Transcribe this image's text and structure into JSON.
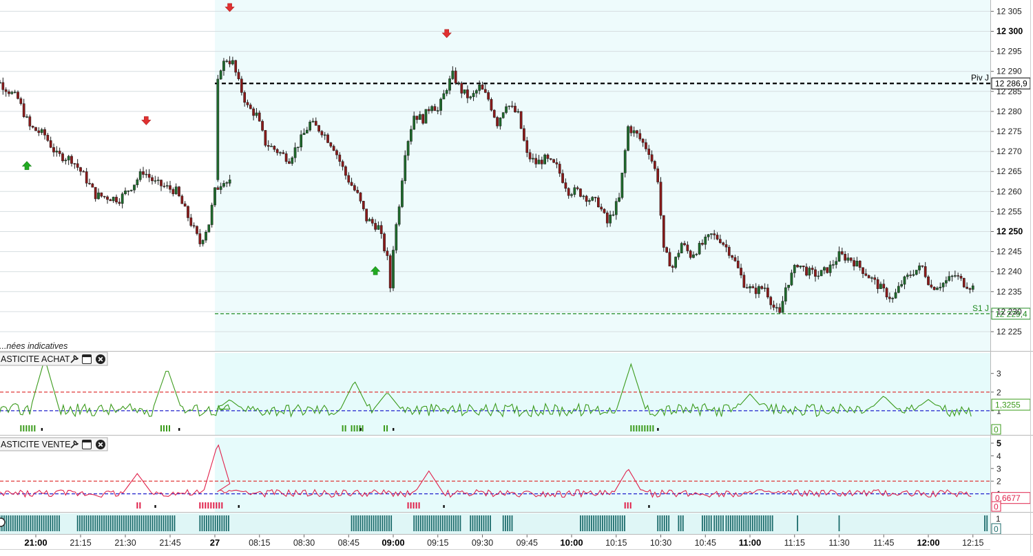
{
  "chart_data": [
    {
      "id": "price",
      "type": "candlestick",
      "note_text": "...nées indicatives",
      "y_ticks": [
        "12 305",
        "12 300",
        "12 295",
        "12 290",
        "12 285",
        "12 280",
        "12 275",
        "12 270",
        "12 265",
        "12 260",
        "12 255",
        "12 250",
        "12 245",
        "12 240",
        "12 235",
        "12 230",
        "12 225"
      ],
      "y_bold": [
        "12 300",
        "12 250"
      ],
      "ylim": [
        12222,
        12309
      ],
      "x_time_labels": [
        "21:00",
        "21:15",
        "21:30",
        "21:45",
        "27",
        "08:15",
        "08:30",
        "08:45",
        "09:00",
        "09:15",
        "09:30",
        "09:45",
        "10:00",
        "10:15",
        "10:30",
        "10:45",
        "11:00",
        "11:15",
        "11:30",
        "11:45",
        "12:00",
        "12:15"
      ],
      "x_bold": [
        "21:00",
        "27",
        "09:00",
        "10:00",
        "11:00",
        "12:00"
      ],
      "session_start_label": "27",
      "levels": [
        {
          "name": "Piv J",
          "value": 12286.9,
          "label": "12 286,9",
          "color": "#000000",
          "style": "dashed-bold"
        },
        {
          "name": "S1 J",
          "value": 12229.4,
          "label": "12 229,4",
          "color": "#1f8a1f",
          "style": "dashed"
        }
      ],
      "signals": [
        {
          "kind": "buy",
          "time": "20:57",
          "color": "#22aa22"
        },
        {
          "kind": "sell",
          "time": "21:37",
          "color": "#e03030"
        },
        {
          "kind": "sell",
          "time": "08:05",
          "color": "#e03030"
        },
        {
          "kind": "buy",
          "time": "08:54",
          "color": "#22aa22"
        },
        {
          "kind": "sell",
          "time": "09:18",
          "color": "#e03030"
        }
      ],
      "path": [
        [
          "20:42",
          12291
        ],
        [
          "20:48",
          12287
        ],
        [
          "20:54",
          12283
        ],
        [
          "20:58",
          12276
        ],
        [
          "21:03",
          12274
        ],
        [
          "21:07",
          12269
        ],
        [
          "21:12",
          12268
        ],
        [
          "21:16",
          12264
        ],
        [
          "21:20",
          12259
        ],
        [
          "21:28",
          12258
        ],
        [
          "21:33",
          12262
        ],
        [
          "21:36",
          12265
        ],
        [
          "21:40",
          12262
        ],
        [
          "21:47",
          12260
        ],
        [
          "21:52",
          12252
        ],
        [
          "21:55",
          12247
        ],
        [
          "21:58",
          12252
        ],
        [
          "22:00",
          12260
        ],
        [
          "22:03",
          12263
        ],
        [
          "22:05",
          12262
        ],
        [
          "08:00",
          12283
        ],
        [
          "08:02",
          12291
        ],
        [
          "08:04",
          12293
        ],
        [
          "08:06",
          12292
        ],
        [
          "08:08",
          12287
        ],
        [
          "08:11",
          12281
        ],
        [
          "08:14",
          12279
        ],
        [
          "08:17",
          12272
        ],
        [
          "08:21",
          12270
        ],
        [
          "08:25",
          12268
        ],
        [
          "08:29",
          12273
        ],
        [
          "08:32",
          12277
        ],
        [
          "08:36",
          12275
        ],
        [
          "08:40",
          12271
        ],
        [
          "08:44",
          12264
        ],
        [
          "08:48",
          12259
        ],
        [
          "08:51",
          12253
        ],
        [
          "08:55",
          12251
        ],
        [
          "08:58",
          12243
        ],
        [
          "08:59",
          12236
        ],
        [
          "09:00",
          12246
        ],
        [
          "09:02",
          12257
        ],
        [
          "09:04",
          12270
        ],
        [
          "09:07",
          12279
        ],
        [
          "09:10",
          12278
        ],
        [
          "09:13",
          12282
        ],
        [
          "09:15",
          12280
        ],
        [
          "09:18",
          12286
        ],
        [
          "09:20",
          12289
        ],
        [
          "09:23",
          12285
        ],
        [
          "09:26",
          12283
        ],
        [
          "09:29",
          12286
        ],
        [
          "09:32",
          12283
        ],
        [
          "09:35",
          12277
        ],
        [
          "09:38",
          12282
        ],
        [
          "09:42",
          12279
        ],
        [
          "09:45",
          12269
        ],
        [
          "09:48",
          12267
        ],
        [
          "09:51",
          12268
        ],
        [
          "09:55",
          12266
        ],
        [
          "09:59",
          12260
        ],
        [
          "10:02",
          12260
        ],
        [
          "10:06",
          12258
        ],
        [
          "10:09",
          12257
        ],
        [
          "10:12",
          12252
        ],
        [
          "10:16",
          12258
        ],
        [
          "10:19",
          12276
        ],
        [
          "10:22",
          12274
        ],
        [
          "10:26",
          12270
        ],
        [
          "10:29",
          12263
        ],
        [
          "10:31",
          12245
        ],
        [
          "10:34",
          12241
        ],
        [
          "10:37",
          12247
        ],
        [
          "10:40",
          12244
        ],
        [
          "10:43",
          12246
        ],
        [
          "10:47",
          12249
        ],
        [
          "10:50",
          12248
        ],
        [
          "10:54",
          12244
        ],
        [
          "10:58",
          12237
        ],
        [
          "11:01",
          12235
        ],
        [
          "11:05",
          12236
        ],
        [
          "11:08",
          12231
        ],
        [
          "11:10",
          12229
        ],
        [
          "11:12",
          12236
        ],
        [
          "11:16",
          12242
        ],
        [
          "11:19",
          12240
        ],
        [
          "11:23",
          12239
        ],
        [
          "11:27",
          12241
        ],
        [
          "11:30",
          12244
        ],
        [
          "11:34",
          12243
        ],
        [
          "11:37",
          12241
        ],
        [
          "11:41",
          12238
        ],
        [
          "11:45",
          12235
        ],
        [
          "11:48",
          12233
        ],
        [
          "11:51",
          12237
        ],
        [
          "11:55",
          12240
        ],
        [
          "11:58",
          12241
        ],
        [
          "12:01",
          12236
        ],
        [
          "12:05",
          12237
        ],
        [
          "12:09",
          12239
        ],
        [
          "12:12",
          12237
        ],
        [
          "12:15",
          12236
        ],
        [
          "12:18",
          12234
        ]
      ]
    },
    {
      "id": "elasticite_achat",
      "type": "line",
      "title": "ASTICITE ACHAT",
      "value_label": "1,3255",
      "zero_label": "0",
      "y_ticks": [
        "3",
        "2",
        "1"
      ],
      "ylim": [
        0,
        3.8
      ],
      "lines": [
        {
          "value": 2,
          "color": "#dd2222"
        },
        {
          "value": 1,
          "color": "#1f1fcc"
        }
      ],
      "line_color": "#3a9a1a",
      "spikes": [
        [
          "21:03",
          3.8
        ],
        [
          "21:44",
          3.3
        ],
        [
          "08:05",
          1.6
        ],
        [
          "08:47",
          2.6
        ],
        [
          "08:58",
          2.0
        ],
        [
          "10:20",
          3.5
        ],
        [
          "11:00",
          1.9
        ],
        [
          "11:45",
          1.8
        ],
        [
          "12:00",
          1.6
        ]
      ],
      "bars": [
        [
          "20:55",
          "21:00"
        ],
        [
          "21:42",
          "21:45"
        ],
        [
          "08:43",
          "08:44"
        ],
        [
          "08:46",
          "08:50"
        ],
        [
          "08:57",
          "08:58"
        ],
        [
          "10:20",
          "10:28"
        ]
      ],
      "marks": [
        "21:02",
        "21:48",
        "08:49",
        "09:00",
        "10:29"
      ]
    },
    {
      "id": "elasticite_vente",
      "type": "line",
      "title": "ASTICITE VENTE",
      "value_label": "0,6677",
      "zero_label": "0",
      "y_ticks": [
        "5",
        "4",
        "3",
        "2",
        "1"
      ],
      "ylim": [
        0,
        5
      ],
      "lines": [
        {
          "value": 2,
          "color": "#dd2222"
        },
        {
          "value": 1,
          "color": "#1f1fcc"
        }
      ],
      "line_color": "#e0204a",
      "spikes": [
        [
          "21:34",
          2.6
        ],
        [
          "22:01",
          5.0
        ],
        [
          "08:07",
          1.3
        ],
        [
          "09:12",
          2.8
        ],
        [
          "10:19",
          3.0
        ],
        [
          "11:05",
          1.2
        ]
      ],
      "bars": [
        [
          "21:34",
          "21:35"
        ],
        [
          "21:55",
          "22:03"
        ],
        [
          "09:05",
          "09:09"
        ],
        [
          "10:18",
          "10:20"
        ]
      ],
      "marks": [
        "21:40",
        "08:08",
        "09:17",
        "10:26"
      ]
    },
    {
      "id": "volume_blocks",
      "type": "bar",
      "y_ticks": [
        "1",
        "0"
      ],
      "bar_color": "#1b6b6b",
      "blocks": [
        [
          "20:42",
          "21:08"
        ],
        [
          "21:14",
          "21:47"
        ],
        [
          "21:55",
          "22:05"
        ],
        [
          "08:46",
          "09:00"
        ],
        [
          "09:07",
          "09:23"
        ],
        [
          "09:26",
          "09:33"
        ],
        [
          "09:37",
          "09:40"
        ],
        [
          "10:03",
          "10:18"
        ],
        [
          "10:29",
          "10:33"
        ],
        [
          "10:36",
          "10:38"
        ],
        [
          "10:44",
          "10:47"
        ],
        [
          "10:48",
          "10:51"
        ],
        [
          "10:52",
          "11:08"
        ],
        [
          "11:16",
          "11:16"
        ],
        [
          "11:30",
          "11:30"
        ],
        [
          "12:19",
          "12:20"
        ]
      ]
    }
  ]
}
